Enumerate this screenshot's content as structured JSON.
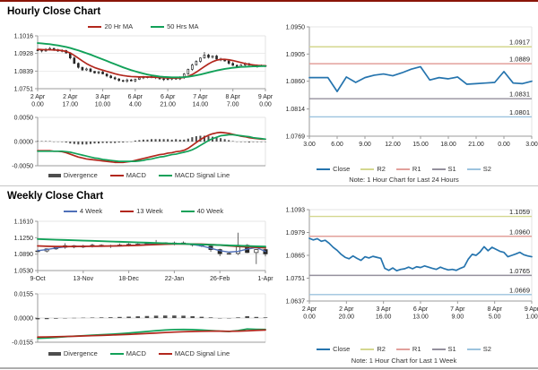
{
  "panels": {
    "hourly": {
      "title": "Hourly Close Chart"
    },
    "weekly": {
      "title": "Weekly Close Chart"
    }
  },
  "chart_data": [
    {
      "id": "hourly_price",
      "type": "candlestick",
      "title": "Hourly Close Chart",
      "y_range": [
        1.0751,
        1.1016
      ],
      "y_ticks": [
        1.1016,
        1.0928,
        1.0839,
        1.0751
      ],
      "x_ticks": [
        [
          "2 Apr",
          "0.00"
        ],
        [
          "2 Apr",
          "17.00"
        ],
        [
          "3 Apr",
          "10.00"
        ],
        [
          "6 Apr",
          "4.00"
        ],
        [
          "6 Apr",
          "21.00"
        ],
        [
          "7 Apr",
          "14.00"
        ],
        [
          "8 Apr",
          "7.00"
        ],
        [
          "9 Apr",
          "0.00"
        ]
      ],
      "candles": {
        "color": "#262626",
        "wick_amp": 0.0007,
        "wick_overrides": {
          "41": {
            "hi": 1.0935
          }
        },
        "values": [
          1.0945,
          1.094,
          1.0948,
          1.0953,
          1.0946,
          1.094,
          1.0942,
          1.093,
          1.0905,
          1.0878,
          1.0858,
          1.0845,
          1.085,
          1.0838,
          1.083,
          1.0835,
          1.0825,
          1.0815,
          1.0806,
          1.08,
          1.0792,
          1.0788,
          1.0795,
          1.079,
          1.0798,
          1.0805,
          1.081,
          1.0808,
          1.0812,
          1.0806,
          1.08,
          1.0797,
          1.08,
          1.0803,
          1.08,
          1.0806,
          1.0825,
          1.0848,
          1.087,
          1.0888,
          1.0905,
          1.092,
          1.0908,
          1.0915,
          1.09,
          1.0895,
          1.089,
          1.0878,
          1.0868,
          1.0862,
          1.087,
          1.0876,
          1.087,
          1.0866,
          1.0863,
          1.0866,
          1.0867
        ]
      },
      "series": [
        {
          "name": "20 Hr MA",
          "color": "#B2271D",
          "width": 1.7,
          "values": [
            1.0948,
            1.0947,
            1.0946,
            1.0946,
            1.0945,
            1.0944,
            1.0942,
            1.0938,
            1.093,
            1.0918,
            1.0904,
            1.089,
            1.0877,
            1.0866,
            1.0857,
            1.085,
            1.0844,
            1.0838,
            1.0832,
            1.0826,
            1.0821,
            1.0817,
            1.0814,
            1.0812,
            1.0811,
            1.081,
            1.081,
            1.081,
            1.0809,
            1.0808,
            1.0807,
            1.0806,
            1.0805,
            1.0804,
            1.0804,
            1.0805,
            1.0808,
            1.0813,
            1.0822,
            1.0834,
            1.0848,
            1.0862,
            1.0875,
            1.0886,
            1.0894,
            1.0898,
            1.0898,
            1.0896,
            1.0892,
            1.0887,
            1.0882,
            1.0877,
            1.0873,
            1.087,
            1.0868,
            1.0867,
            1.0866
          ]
        },
        {
          "name": "50 Hrs MA",
          "color": "#12A159",
          "width": 1.9,
          "values": [
            1.098,
            1.0978,
            1.0976,
            1.0974,
            1.0971,
            1.0968,
            1.0964,
            1.096,
            1.0955,
            1.0949,
            1.0943,
            1.0936,
            1.0929,
            1.0922,
            1.0914,
            1.0906,
            1.0898,
            1.089,
            1.0882,
            1.0874,
            1.0866,
            1.0858,
            1.0851,
            1.0844,
            1.0838,
            1.0832,
            1.0827,
            1.0822,
            1.0818,
            1.0815,
            1.0812,
            1.081,
            1.0809,
            1.0808,
            1.0808,
            1.0808,
            1.0809,
            1.0811,
            1.0814,
            1.0818,
            1.0822,
            1.0827,
            1.0832,
            1.0837,
            1.0842,
            1.0846,
            1.085,
            1.0853,
            1.0856,
            1.0858,
            1.086,
            1.0861,
            1.0862,
            1.0863,
            1.0863,
            1.0864,
            1.0864
          ]
        }
      ]
    },
    {
      "id": "hourly_macd",
      "type": "macd",
      "y_range": [
        -0.005,
        0.005
      ],
      "y_ticks": [
        0.005,
        0,
        -0.005
      ],
      "divergence": {
        "name": "Divergence",
        "color": "#4D4D4D"
      },
      "macd": {
        "name": "MACD",
        "color": "#B2271D",
        "values": [
          -0.0019,
          -0.0019,
          -0.0019,
          -0.0019,
          -0.002,
          -0.002,
          -0.0021,
          -0.0023,
          -0.0026,
          -0.0029,
          -0.0032,
          -0.0034,
          -0.0036,
          -0.0037,
          -0.0038,
          -0.0039,
          -0.004,
          -0.0041,
          -0.0042,
          -0.0043,
          -0.0043,
          -0.0043,
          -0.0042,
          -0.0041,
          -0.0039,
          -0.0037,
          -0.0035,
          -0.0033,
          -0.0031,
          -0.0029,
          -0.0027,
          -0.0026,
          -0.0024,
          -0.0023,
          -0.0021,
          -0.002,
          -0.0018,
          -0.0014,
          -0.0008,
          -0.0002,
          0.0004,
          0.0009,
          0.0013,
          0.0016,
          0.0018,
          0.0019,
          0.0018,
          0.0017,
          0.0015,
          0.0013,
          0.0011,
          0.001,
          0.0008,
          0.0007,
          0.0006,
          0.0005,
          0.0005
        ]
      },
      "signal": {
        "name": "MACD Signal Line",
        "color": "#12A159",
        "values": [
          -0.002,
          -0.002,
          -0.002,
          -0.002,
          -0.002,
          -0.002,
          -0.002,
          -0.0021,
          -0.0022,
          -0.0024,
          -0.0026,
          -0.0028,
          -0.003,
          -0.0032,
          -0.0034,
          -0.0035,
          -0.0037,
          -0.0038,
          -0.0039,
          -0.004,
          -0.0041,
          -0.0041,
          -0.0041,
          -0.0041,
          -0.0041,
          -0.004,
          -0.0039,
          -0.0037,
          -0.0036,
          -0.0034,
          -0.0032,
          -0.0031,
          -0.0029,
          -0.0027,
          -0.0026,
          -0.0024,
          -0.0022,
          -0.002,
          -0.0017,
          -0.0013,
          -0.0008,
          -0.0003,
          0.0002,
          0.0006,
          0.0009,
          0.0012,
          0.0013,
          0.0014,
          0.0014,
          0.0013,
          0.0012,
          0.0011,
          0.001,
          0.0008,
          0.0007,
          0.0006,
          0.0005
        ]
      }
    },
    {
      "id": "hourly_pivot",
      "type": "line_levels",
      "y_range": [
        1.0769,
        1.095
      ],
      "y_ticks": [
        1.095,
        1.0905,
        1.086,
        1.0814,
        1.0769
      ],
      "x_ticks": [
        [
          "3.00"
        ],
        [
          "6.00"
        ],
        [
          "9.00"
        ],
        [
          "12.00"
        ],
        [
          "15.00"
        ],
        [
          "18.00"
        ],
        [
          "21.00"
        ],
        [
          "0.00"
        ],
        [
          "3.00"
        ]
      ],
      "close": {
        "name": "Close",
        "color": "#2574AE",
        "values": [
          1.0866,
          1.0866,
          1.0866,
          1.0843,
          1.0867,
          1.0858,
          1.0866,
          1.087,
          1.0872,
          1.0869,
          1.0874,
          1.088,
          1.0884,
          1.0862,
          1.0866,
          1.0864,
          1.0867,
          1.0855,
          1.0856,
          1.0857,
          1.0858,
          1.0876,
          1.0857,
          1.0856,
          1.086
        ]
      },
      "levels": [
        {
          "name": "R2",
          "value": 1.0917,
          "color": "#D4D78F"
        },
        {
          "name": "R1",
          "value": 1.0889,
          "color": "#E2A09B"
        },
        {
          "name": "S1",
          "value": 1.0831,
          "color": "#94909D"
        },
        {
          "name": "S2",
          "value": 1.0801,
          "color": "#9CC3DE"
        }
      ],
      "note": "Note: 1 Hour Chart for Last 24 Hours"
    },
    {
      "id": "weekly_price",
      "type": "candlestick",
      "title": "Weekly Close Chart",
      "y_range": [
        1.053,
        1.161
      ],
      "y_ticks": [
        1.161,
        1.125,
        1.089,
        1.053
      ],
      "x_ticks": [
        [
          "9-Oct"
        ],
        [
          "13-Nov"
        ],
        [
          "18-Dec"
        ],
        [
          "22-Jan"
        ],
        [
          "26-Feb"
        ],
        [
          "1-Apr"
        ]
      ],
      "candles": {
        "color": "#262626",
        "wick_amp": 0.0035,
        "wick_overrides": {
          "3": {
            "hi": 1.113
          },
          "13": {
            "hi": 1.12
          },
          "19": {
            "lo": 1.094
          },
          "20": {
            "lo": 1.0845
          },
          "22": {
            "hi": 1.136
          },
          "24": {
            "lo": 1.0672
          },
          "25": {
            "lo": 1.0842
          }
        },
        "values": [
          1.096,
          1.1005,
          1.104,
          1.1075,
          1.1045,
          1.107,
          1.1085,
          1.106,
          1.1075,
          1.109,
          1.1105,
          1.111,
          1.1125,
          1.114,
          1.112,
          1.1135,
          1.111,
          1.109,
          1.1065,
          1.099,
          1.09,
          1.0905,
          1.1085,
          1.0925,
          1.099,
          1.0895
        ]
      },
      "series": [
        {
          "name": "4 Week",
          "color": "#4F6FB8",
          "width": 1.4,
          "values": [
            1.0965,
            1.099,
            1.1025,
            1.105,
            1.106,
            1.106,
            1.1065,
            1.1062,
            1.1066,
            1.107,
            1.1078,
            1.109,
            1.11,
            1.1112,
            1.1118,
            1.112,
            1.1115,
            1.11,
            1.107,
            1.102,
            1.0965,
            1.0935,
            1.095,
            1.1,
            1.1035,
            1.095
          ]
        },
        {
          "name": "13 Week",
          "color": "#B2271D",
          "width": 1.8,
          "values": [
            1.107,
            1.1062,
            1.1058,
            1.1056,
            1.1058,
            1.106,
            1.1063,
            1.1066,
            1.1068,
            1.1072,
            1.1078,
            1.1084,
            1.1092,
            1.11,
            1.1108,
            1.1112,
            1.1113,
            1.1112,
            1.1108,
            1.11,
            1.1088,
            1.1072,
            1.1058,
            1.1048,
            1.104,
            1.103
          ]
        },
        {
          "name": "40 Week",
          "color": "#12A159",
          "width": 1.9,
          "values": [
            1.122,
            1.1213,
            1.1207,
            1.12,
            1.1194,
            1.1187,
            1.1181,
            1.1174,
            1.1167,
            1.1161,
            1.1154,
            1.1148,
            1.1141,
            1.1134,
            1.1128,
            1.1121,
            1.1115,
            1.1108,
            1.1101,
            1.1095,
            1.1088,
            1.1082,
            1.1075,
            1.1068,
            1.1062,
            1.1055
          ]
        }
      ]
    },
    {
      "id": "weekly_macd",
      "type": "macd",
      "y_range": [
        -0.0155,
        0.0155
      ],
      "y_ticks": [
        0.0155,
        0,
        -0.0155
      ],
      "divergence": {
        "name": "Divergence",
        "color": "#4D4D4D"
      },
      "macd": {
        "name": "MACD",
        "color": "#12A159",
        "values": [
          -0.013,
          -0.0128,
          -0.0124,
          -0.012,
          -0.0116,
          -0.0113,
          -0.011,
          -0.0107,
          -0.0104,
          -0.01,
          -0.0096,
          -0.0091,
          -0.0086,
          -0.0081,
          -0.0077,
          -0.0074,
          -0.0073,
          -0.0074,
          -0.0077,
          -0.008,
          -0.0084,
          -0.0086,
          -0.008,
          -0.007,
          -0.0072,
          -0.0073
        ]
      },
      "signal": {
        "name": "MACD Signal Line",
        "color": "#B2271D",
        "values": [
          -0.0122,
          -0.0121,
          -0.012,
          -0.0118,
          -0.0117,
          -0.0115,
          -0.0113,
          -0.0111,
          -0.0109,
          -0.0107,
          -0.0105,
          -0.0102,
          -0.0099,
          -0.0096,
          -0.0093,
          -0.009,
          -0.0088,
          -0.0086,
          -0.0085,
          -0.0084,
          -0.0084,
          -0.0085,
          -0.0084,
          -0.0082,
          -0.0079,
          -0.0077
        ]
      }
    },
    {
      "id": "weekly_pivot",
      "type": "line_levels",
      "y_range": [
        1.0637,
        1.1093
      ],
      "y_ticks": [
        1.1093,
        1.0979,
        1.0865,
        1.0751,
        1.0637
      ],
      "x_ticks": [
        [
          "2 Apr",
          "0.00"
        ],
        [
          "2 Apr",
          "20.00"
        ],
        [
          "3 Apr",
          "16.00"
        ],
        [
          "6 Apr",
          "13.00"
        ],
        [
          "7 Apr",
          "9.00"
        ],
        [
          "8 Apr",
          "5.00"
        ],
        [
          "9 Apr",
          "1.00"
        ]
      ],
      "close": {
        "name": "Close",
        "color": "#2574AE",
        "values": [
          1.095,
          1.0942,
          1.0948,
          1.0935,
          1.094,
          1.0925,
          1.0905,
          1.089,
          1.087,
          1.0855,
          1.0848,
          1.0862,
          1.085,
          1.084,
          1.0858,
          1.0852,
          1.086,
          1.0855,
          1.085,
          1.08,
          1.079,
          1.0802,
          1.0788,
          1.0795,
          1.0798,
          1.0806,
          1.0798,
          1.0808,
          1.0804,
          1.0812,
          1.0806,
          1.08,
          1.0795,
          1.0806,
          1.0798,
          1.0792,
          1.0795,
          1.079,
          1.08,
          1.0808,
          1.0845,
          1.087,
          1.0865,
          1.0882,
          1.0908,
          1.0888,
          1.0905,
          1.0895,
          1.0885,
          1.088,
          1.0858,
          1.0865,
          1.0872,
          1.088,
          1.0868,
          1.0862,
          1.0858
        ]
      },
      "levels": [
        {
          "name": "R2",
          "value": 1.1059,
          "color": "#D4D78F"
        },
        {
          "name": "R1",
          "value": 1.096,
          "color": "#E2A09B"
        },
        {
          "name": "S1",
          "value": 1.0765,
          "color": "#94909D"
        },
        {
          "name": "S2",
          "value": 1.0669,
          "color": "#9CC3DE"
        }
      ],
      "note": "Note: 1 Hour Chart for Last 1 Week"
    }
  ]
}
